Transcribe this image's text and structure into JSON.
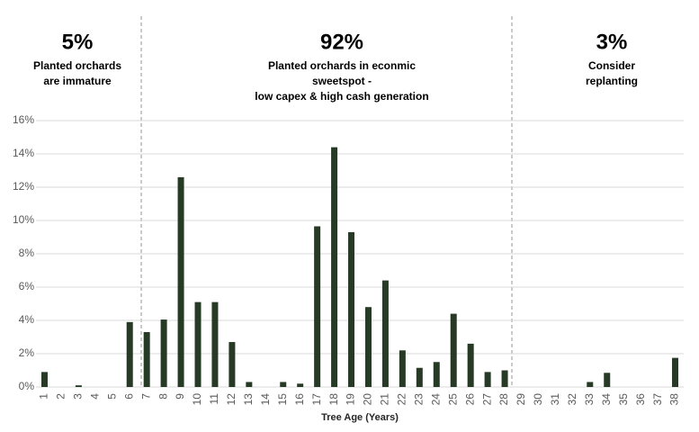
{
  "chart_data": {
    "type": "bar",
    "x_label": "Tree Age (Years)",
    "categories": [
      "1",
      "2",
      "3",
      "4",
      "5",
      "6",
      "7",
      "8",
      "9",
      "10",
      "11",
      "12",
      "13",
      "14",
      "15",
      "16",
      "17",
      "18",
      "19",
      "20",
      "21",
      "22",
      "23",
      "24",
      "25",
      "26",
      "27",
      "28",
      "29",
      "30",
      "31",
      "32",
      "33",
      "34",
      "35",
      "36",
      "37",
      "38"
    ],
    "values": [
      0.9,
      0,
      0.1,
      0,
      0,
      3.9,
      3.3,
      4.05,
      12.6,
      5.1,
      5.1,
      2.7,
      0.3,
      0,
      0.3,
      0.2,
      9.65,
      14.4,
      9.3,
      4.8,
      6.4,
      2.2,
      1.15,
      1.5,
      4.4,
      2.6,
      0.9,
      1.0,
      0,
      0,
      0,
      0,
      0.3,
      0.85,
      0,
      0,
      0,
      1.75
    ],
    "color": "#263a26",
    "ylim": [
      0,
      16
    ],
    "yticks": [
      {
        "value": 0,
        "label": "0%"
      },
      {
        "value": 2,
        "label": "2%"
      },
      {
        "value": 4,
        "label": "4%"
      },
      {
        "value": 6,
        "label": "6%"
      },
      {
        "value": 8,
        "label": "8%"
      },
      {
        "value": 10,
        "label": "10%"
      },
      {
        "value": 12,
        "label": "12%"
      },
      {
        "value": 14,
        "label": "14%"
      },
      {
        "value": 16,
        "label": "16%"
      }
    ],
    "grid": true,
    "annotations": [
      {
        "headline": "5%",
        "lines": [
          "Planted orchards",
          "are immature"
        ]
      },
      {
        "headline": "92%",
        "lines": [
          "Planted orchards in econmic",
          "sweetspot -",
          "low capex & high cash generation"
        ]
      },
      {
        "headline": "3%",
        "lines": [
          "Consider",
          "replanting"
        ]
      }
    ]
  }
}
